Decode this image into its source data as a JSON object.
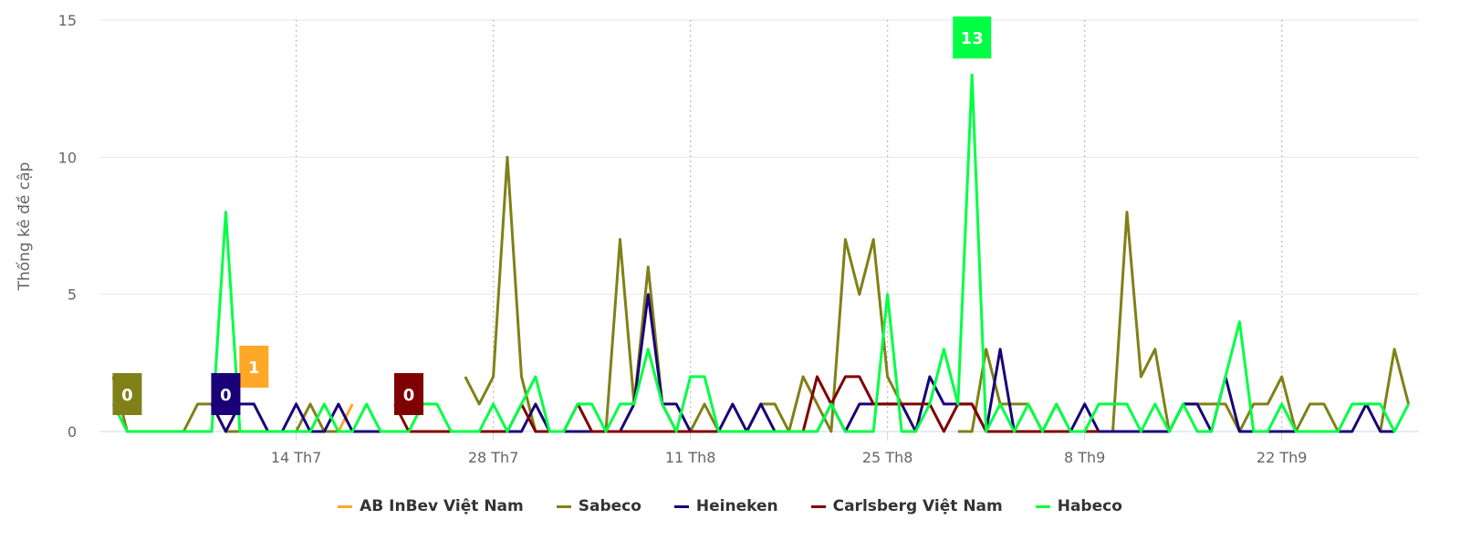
{
  "chart_data": {
    "type": "line",
    "title": "",
    "ylabel": "Thống kê đề cập",
    "xlabel": "",
    "ylim": [
      0,
      15
    ],
    "yticks": [
      0,
      5,
      10,
      15
    ],
    "x_start": "1 Th7",
    "x_count": 93,
    "xticks": [
      {
        "index": 13,
        "label": "14 Th7"
      },
      {
        "index": 27,
        "label": "28 Th7"
      },
      {
        "index": 41,
        "label": "11 Th8"
      },
      {
        "index": 55,
        "label": "25 Th8"
      },
      {
        "index": 69,
        "label": "8 Th9"
      },
      {
        "index": 83,
        "label": "22 Th9"
      }
    ],
    "grid": true,
    "legend_position": "bottom",
    "series": [
      {
        "name": "AB InBev Việt Nam",
        "color": "#FFA726",
        "label_index": 10,
        "label": "1",
        "values": [
          null,
          null,
          null,
          null,
          null,
          null,
          null,
          null,
          null,
          null,
          1,
          null,
          null,
          null,
          null,
          null,
          0,
          1,
          null,
          null,
          null,
          null,
          null,
          null,
          null,
          null,
          null,
          null,
          null,
          null,
          null,
          null,
          null,
          null,
          null,
          null,
          null,
          null,
          null,
          null,
          null,
          null,
          null,
          null,
          null,
          null,
          null,
          null,
          null,
          null,
          null,
          null,
          null,
          null,
          null,
          null,
          null,
          null,
          null,
          null,
          null,
          null,
          null,
          null,
          null,
          null,
          null,
          null,
          null,
          null,
          null,
          null,
          null,
          null,
          null,
          null,
          null,
          null,
          null,
          null,
          null,
          null,
          null,
          null,
          null,
          null,
          null,
          null,
          null,
          null,
          null,
          null,
          null
        ]
      },
      {
        "name": "Sabeco",
        "color": "#808018",
        "label_index": 1,
        "label": "0",
        "values": [
          2,
          0,
          0,
          0,
          0,
          0,
          1,
          1,
          0,
          0,
          null,
          null,
          null,
          0,
          1,
          0,
          0,
          null,
          null,
          null,
          null,
          null,
          null,
          null,
          null,
          2,
          1,
          2,
          10,
          2,
          0,
          0,
          0,
          0,
          0,
          0,
          7,
          1,
          6,
          1,
          0,
          0,
          1,
          0,
          0,
          0,
          1,
          1,
          0,
          2,
          1,
          0,
          7,
          5,
          7,
          2,
          1,
          null,
          null,
          null,
          0,
          0,
          3,
          1,
          1,
          1,
          0,
          1,
          0,
          0,
          0,
          0,
          8,
          2,
          3,
          0,
          1,
          1,
          1,
          1,
          0,
          1,
          1,
          2,
          0,
          1,
          1,
          0,
          null,
          null,
          0,
          3,
          1
        ]
      },
      {
        "name": "Heineken",
        "color": "#1A0078",
        "label_index": 8,
        "label": "0",
        "values": [
          null,
          null,
          null,
          null,
          null,
          null,
          null,
          1,
          0,
          1,
          1,
          0,
          0,
          1,
          0,
          0,
          1,
          0,
          0,
          0,
          0,
          0,
          0,
          0,
          0,
          0,
          0,
          0,
          0,
          0,
          1,
          0,
          0,
          0,
          0,
          0,
          0,
          1,
          5,
          1,
          1,
          0,
          0,
          0,
          1,
          0,
          1,
          0,
          0,
          0,
          0,
          1,
          0,
          1,
          1,
          1,
          1,
          0,
          2,
          1,
          1,
          1,
          0,
          3,
          0,
          0,
          0,
          0,
          0,
          1,
          0,
          0,
          0,
          0,
          0,
          0,
          1,
          1,
          0,
          2,
          0,
          0,
          0,
          0,
          0,
          0,
          0,
          0,
          0,
          1,
          0,
          0,
          null
        ]
      },
      {
        "name": "Carlsberg Việt Nam",
        "color": "#7F0000",
        "label_index": 21,
        "label": "0",
        "values": [
          null,
          null,
          null,
          null,
          null,
          null,
          null,
          null,
          null,
          null,
          null,
          null,
          null,
          null,
          null,
          null,
          null,
          null,
          null,
          null,
          1,
          0,
          0,
          0,
          0,
          0,
          0,
          0,
          0,
          1,
          0,
          0,
          0,
          1,
          0,
          0,
          0,
          0,
          0,
          0,
          0,
          0,
          0,
          0,
          0,
          0,
          0,
          0,
          0,
          0,
          2,
          1,
          2,
          2,
          1,
          1,
          1,
          1,
          1,
          0,
          1,
          1,
          0,
          0,
          0,
          0,
          0,
          0,
          0,
          0,
          0,
          null,
          null,
          null,
          null,
          null,
          null,
          null,
          null,
          null,
          null,
          null,
          null,
          null,
          null,
          null,
          null,
          null,
          null,
          null,
          null,
          null,
          null
        ]
      },
      {
        "name": "Habeco",
        "color": "#00FF44",
        "label_index": 61,
        "label": "13",
        "values": [
          1,
          0,
          0,
          0,
          0,
          0,
          0,
          0,
          8,
          0,
          0,
          0,
          0,
          0,
          0,
          1,
          0,
          0,
          1,
          0,
          0,
          0,
          1,
          1,
          0,
          0,
          0,
          1,
          0,
          1,
          2,
          0,
          0,
          1,
          1,
          0,
          1,
          1,
          3,
          1,
          0,
          2,
          2,
          0,
          0,
          0,
          0,
          0,
          0,
          0,
          0,
          1,
          0,
          0,
          0,
          5,
          0,
          0,
          1,
          3,
          1,
          13,
          0,
          1,
          0,
          1,
          0,
          1,
          0,
          0,
          1,
          1,
          1,
          0,
          1,
          0,
          1,
          0,
          0,
          2,
          4,
          0,
          0,
          1,
          0,
          0,
          0,
          0,
          1,
          1,
          1,
          0,
          1
        ]
      }
    ]
  }
}
